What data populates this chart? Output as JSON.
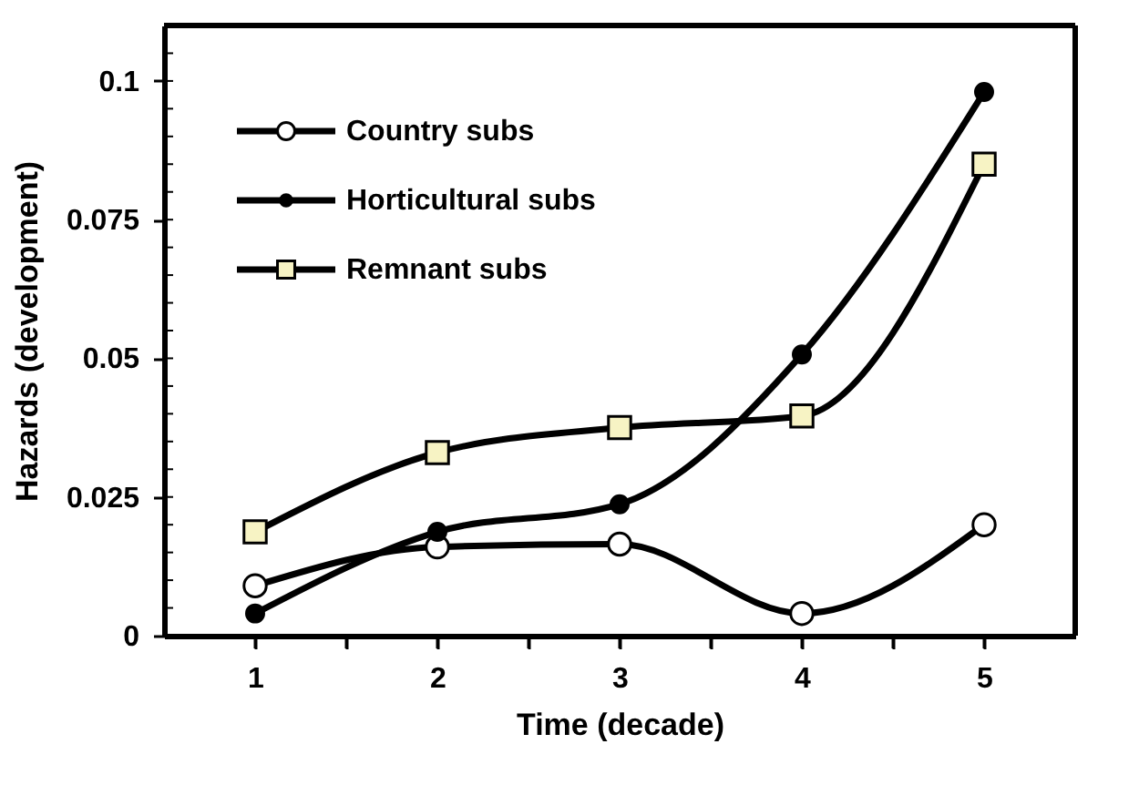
{
  "chart_data": {
    "type": "line",
    "xlabel": "Time (decade)",
    "ylabel": "Hazards (development)",
    "x": [
      1,
      2,
      3,
      4,
      5
    ],
    "series": [
      {
        "name": "Country subs",
        "color": "#000000",
        "marker": "circle",
        "values": [
          0.009,
          0.016,
          0.0165,
          0.004,
          0.02
        ]
      },
      {
        "name": "Horticultural subs",
        "color": "#000000",
        "marker": "circle",
        "values": [
          0.004,
          0.0187,
          0.0237,
          0.0507,
          0.098
        ]
      },
      {
        "name": "Remnant subs",
        "color": "#000000",
        "marker": "square",
        "values": [
          0.0187,
          0.033,
          0.0375,
          0.0396,
          0.085
        ]
      }
    ],
    "xlim": [
      0.5,
      5.5
    ],
    "xticks": [
      1,
      {
        "value": 1.5,
        "label": null
      },
      2,
      {
        "value": 2.5,
        "label": null
      },
      3,
      {
        "value": 3.5,
        "label": null
      },
      4,
      {
        "value": 4.5,
        "label": null
      },
      5
    ],
    "ylim": [
      0,
      0.11
    ],
    "yticks": [
      0,
      0.025,
      0.05,
      0.075,
      0.1
    ],
    "grid": false,
    "legend": "top left",
    "line_style": "solid"
  }
}
